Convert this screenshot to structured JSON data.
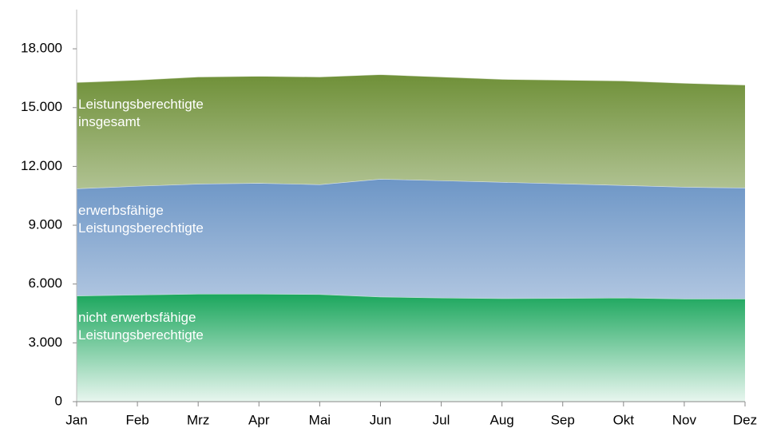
{
  "chart_data": {
    "type": "stacked_area",
    "categories": [
      "Jan",
      "Feb",
      "Mrz",
      "Apr",
      "Mai",
      "Jun",
      "Jul",
      "Aug",
      "Sep",
      "Okt",
      "Nov",
      "Dez"
    ],
    "series": [
      {
        "name": "nicht erwerbsfähige Leistungsberechtigte",
        "color": "#1aa65c",
        "values": [
          5400,
          5450,
          5500,
          5500,
          5480,
          5350,
          5300,
          5270,
          5280,
          5300,
          5250,
          5250
        ]
      },
      {
        "name": "erwerbsfähige Leistungsberechtigte",
        "color": "#6d96c6",
        "values": [
          5470,
          5550,
          5610,
          5650,
          5600,
          6010,
          5980,
          5930,
          5840,
          5740,
          5700,
          5660
        ]
      },
      {
        "name": "Leistungsberechtigte insgesamt",
        "color": "#6f9038",
        "values": [
          5420,
          5410,
          5460,
          5460,
          5490,
          5330,
          5290,
          5250,
          5290,
          5330,
          5300,
          5250
        ]
      }
    ],
    "ylim": [
      0,
      20000
    ],
    "yticks": [
      0,
      {
        "value": 3000,
        "label": "3.000"
      },
      {
        "value": 6000,
        "label": "6.000"
      },
      {
        "value": 9000,
        "label": "9.000"
      },
      {
        "value": 12000,
        "label": "12.000"
      },
      {
        "value": 15000,
        "label": "15.000"
      },
      {
        "value": 18000,
        "label": "18.000"
      }
    ],
    "grid": false
  }
}
